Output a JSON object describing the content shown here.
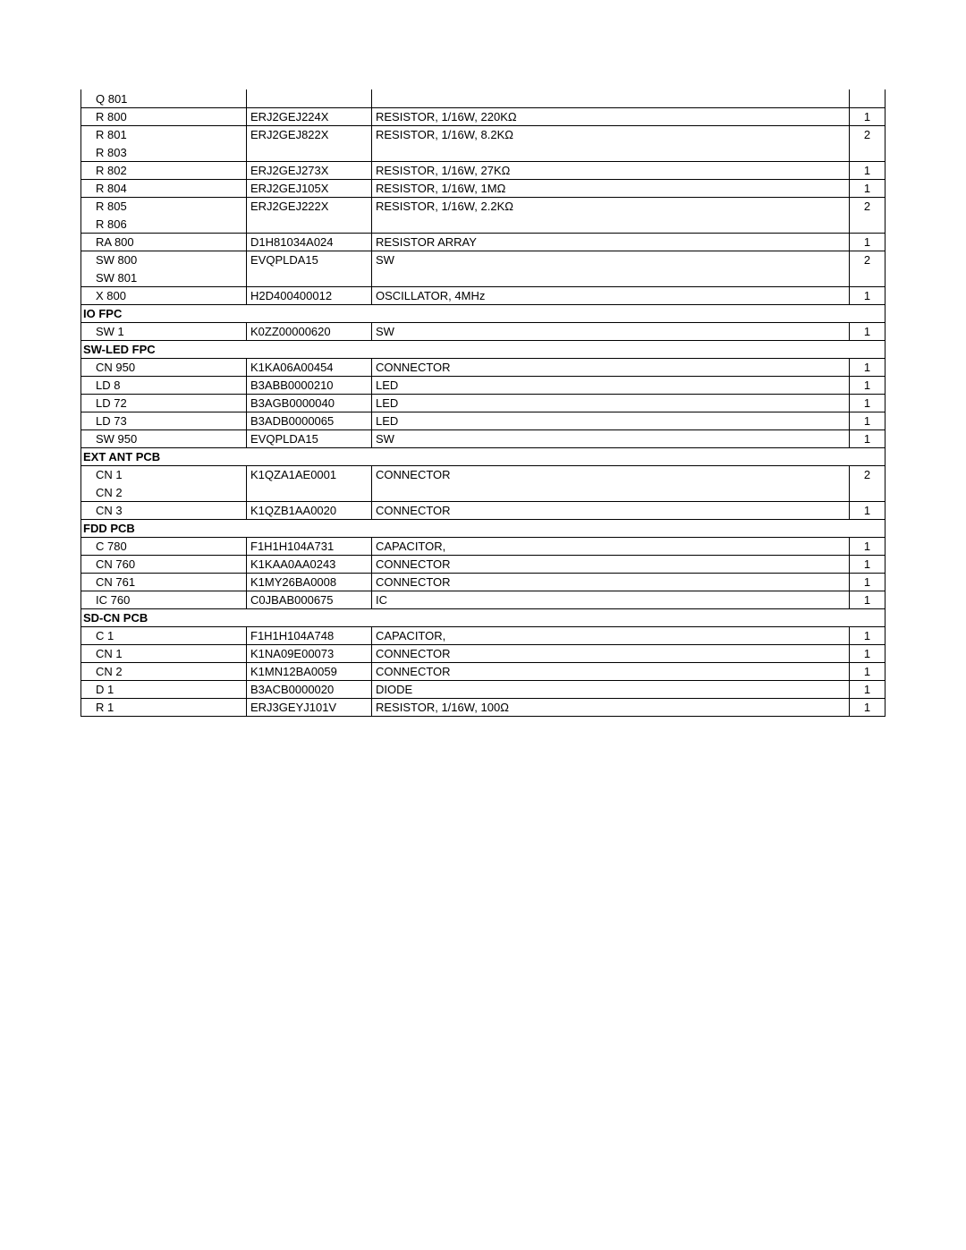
{
  "rows": [
    {
      "type": "part",
      "topBorder": false,
      "ref": "Q  801",
      "part": "",
      "desc": "",
      "qty": ""
    },
    {
      "type": "part",
      "ref": "R  800",
      "part": "ERJ2GEJ224X",
      "desc": "RESISTOR, 1/16W, 220KΩ",
      "qty": "1"
    },
    {
      "type": "part",
      "bottomBorder": false,
      "ref": "R  801",
      "part": "ERJ2GEJ822X",
      "desc": "RESISTOR, 1/16W, 8.2KΩ",
      "qty": "2"
    },
    {
      "type": "part",
      "topBorder": false,
      "ref": "R  803",
      "part": "",
      "desc": "",
      "qty": ""
    },
    {
      "type": "part",
      "ref": "R  802",
      "part": "ERJ2GEJ273X",
      "desc": "RESISTOR, 1/16W, 27KΩ",
      "qty": "1"
    },
    {
      "type": "part",
      "ref": "R  804",
      "part": "ERJ2GEJ105X",
      "desc": "RESISTOR, 1/16W, 1MΩ",
      "qty": "1"
    },
    {
      "type": "part",
      "bottomBorder": false,
      "ref": "R  805",
      "part": "ERJ2GEJ222X",
      "desc": "RESISTOR, 1/16W, 2.2KΩ",
      "qty": "2"
    },
    {
      "type": "part",
      "topBorder": false,
      "ref": "R  806",
      "part": "",
      "desc": "",
      "qty": ""
    },
    {
      "type": "part",
      "ref": "RA 800",
      "part": "D1H81034A024",
      "desc": "RESISTOR ARRAY",
      "qty": "1"
    },
    {
      "type": "part",
      "bottomBorder": false,
      "ref": "SW 800",
      "part": "EVQPLDA15",
      "desc": "SW",
      "qty": "2"
    },
    {
      "type": "part",
      "topBorder": false,
      "ref": "SW 801",
      "part": "",
      "desc": "",
      "qty": ""
    },
    {
      "type": "part",
      "ref": "X  800",
      "part": "H2D400400012",
      "desc": "OSCILLATOR, 4MHz",
      "qty": "1"
    },
    {
      "type": "section",
      "label": "IO FPC"
    },
    {
      "type": "part",
      "ref": "SW 1",
      "part": "K0ZZ00000620",
      "desc": "SW",
      "qty": "1"
    },
    {
      "type": "section",
      "label": "SW-LED FPC"
    },
    {
      "type": "part",
      "ref": "CN 950",
      "part": "K1KA06A00454",
      "desc": "CONNECTOR",
      "qty": "1"
    },
    {
      "type": "part",
      "ref": "LD 8",
      "part": "B3ABB0000210",
      "desc": "LED",
      "qty": "1"
    },
    {
      "type": "part",
      "ref": "LD 72",
      "part": "B3AGB0000040",
      "desc": "LED",
      "qty": "1"
    },
    {
      "type": "part",
      "ref": "LD 73",
      "part": "B3ADB0000065",
      "desc": "LED",
      "qty": "1"
    },
    {
      "type": "part",
      "ref": "SW 950",
      "part": "EVQPLDA15",
      "desc": "SW",
      "qty": "1"
    },
    {
      "type": "section",
      "label": "EXT ANT PCB"
    },
    {
      "type": "part",
      "bottomBorder": false,
      "ref": "CN 1",
      "part": "K1QZA1AE0001",
      "desc": "CONNECTOR",
      "qty": "2"
    },
    {
      "type": "part",
      "topBorder": false,
      "ref": "CN 2",
      "part": "",
      "desc": "",
      "qty": ""
    },
    {
      "type": "part",
      "ref": "CN 3",
      "part": "K1QZB1AA0020",
      "desc": "CONNECTOR",
      "qty": "1"
    },
    {
      "type": "section",
      "label": "FDD PCB"
    },
    {
      "type": "part",
      "ref": "C  780",
      "part": "F1H1H104A731",
      "desc": "CAPACITOR,",
      "qty": "1"
    },
    {
      "type": "part",
      "ref": "CN 760",
      "part": "K1KAA0AA0243",
      "desc": "CONNECTOR",
      "qty": "1"
    },
    {
      "type": "part",
      "ref": "CN 761",
      "part": "K1MY26BA0008",
      "desc": "CONNECTOR",
      "qty": "1"
    },
    {
      "type": "part",
      "ref": "IC 760",
      "part": "C0JBAB000675",
      "desc": "IC",
      "qty": "1"
    },
    {
      "type": "section",
      "label": "SD-CN PCB"
    },
    {
      "type": "part",
      "ref": "C  1",
      "part": "F1H1H104A748",
      "desc": "CAPACITOR,",
      "qty": "1"
    },
    {
      "type": "part",
      "ref": "CN 1",
      "part": "K1NA09E00073",
      "desc": "CONNECTOR",
      "qty": "1"
    },
    {
      "type": "part",
      "ref": "CN 2",
      "part": "K1MN12BA0059",
      "desc": "CONNECTOR",
      "qty": "1"
    },
    {
      "type": "part",
      "ref": "D  1",
      "part": "B3ACB0000020",
      "desc": "DIODE",
      "qty": "1"
    },
    {
      "type": "part",
      "ref": "R  1",
      "part": "ERJ3GEYJ101V",
      "desc": "RESISTOR, 1/16W, 100Ω",
      "qty": "1"
    }
  ]
}
